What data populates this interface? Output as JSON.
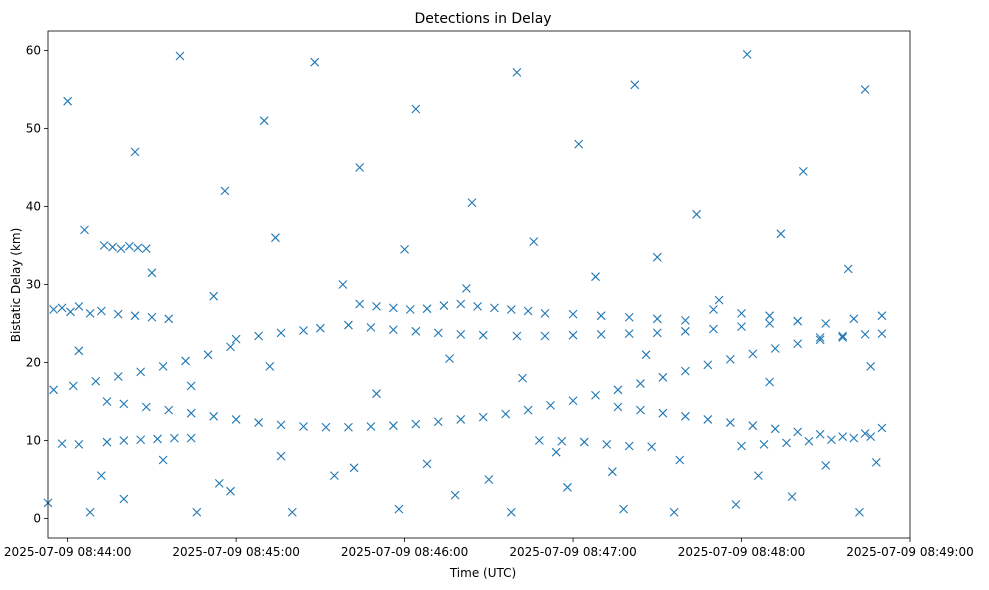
{
  "chart_data": {
    "type": "scatter",
    "title": "Detections in Delay",
    "xlabel": "Time (UTC)",
    "ylabel": "Bistatic Delay (km)",
    "marker": "x",
    "color": "#1f77b4",
    "grid": false,
    "legend": null,
    "x_axis": {
      "type": "time",
      "range": [
        "2025-07-09 08:43:53",
        "2025-07-09 08:49:00"
      ],
      "ticks": [
        {
          "value": "2025-07-09 08:44:00",
          "label": "2025-07-09 08:44:00"
        },
        {
          "value": "2025-07-09 08:45:00",
          "label": "2025-07-09 08:45:00"
        },
        {
          "value": "2025-07-09 08:46:00",
          "label": "2025-07-09 08:46:00"
        },
        {
          "value": "2025-07-09 08:47:00",
          "label": "2025-07-09 08:47:00"
        },
        {
          "value": "2025-07-09 08:48:00",
          "label": "2025-07-09 08:48:00"
        },
        {
          "value": "2025-07-09 08:49:00",
          "label": "2025-07-09 08:49:00"
        }
      ]
    },
    "y_axis": {
      "range": [
        -2.5,
        62.5
      ],
      "ticks": [
        {
          "value": 0,
          "label": "0"
        },
        {
          "value": 10,
          "label": "10"
        },
        {
          "value": 20,
          "label": "20"
        },
        {
          "value": 30,
          "label": "30"
        },
        {
          "value": 40,
          "label": "40"
        },
        {
          "value": 50,
          "label": "50"
        },
        {
          "value": 60,
          "label": "60"
        }
      ]
    },
    "series": [
      {
        "points": [
          [
            "2025-07-09 08:43:55",
            16.5
          ],
          [
            "2025-07-09 08:44:02",
            17.0
          ],
          [
            "2025-07-09 08:44:10",
            17.6
          ],
          [
            "2025-07-09 08:44:18",
            18.2
          ],
          [
            "2025-07-09 08:44:26",
            18.8
          ],
          [
            "2025-07-09 08:44:34",
            19.5
          ],
          [
            "2025-07-09 08:44:42",
            20.2
          ],
          [
            "2025-07-09 08:44:50",
            21.0
          ],
          [
            "2025-07-09 08:44:58",
            22.0
          ],
          [
            "2025-07-09 08:45:00",
            23.0
          ],
          [
            "2025-07-09 08:45:08",
            23.4
          ],
          [
            "2025-07-09 08:45:16",
            23.8
          ],
          [
            "2025-07-09 08:45:24",
            24.1
          ],
          [
            "2025-07-09 08:45:30",
            24.4
          ],
          [
            "2025-07-09 08:45:40",
            24.8
          ],
          [
            "2025-07-09 08:45:48",
            24.5
          ],
          [
            "2025-07-09 08:45:56",
            24.2
          ],
          [
            "2025-07-09 08:46:04",
            24.0
          ],
          [
            "2025-07-09 08:46:12",
            23.8
          ],
          [
            "2025-07-09 08:46:20",
            23.6
          ],
          [
            "2025-07-09 08:46:28",
            23.5
          ],
          [
            "2025-07-09 08:46:40",
            23.4
          ],
          [
            "2025-07-09 08:46:50",
            23.4
          ],
          [
            "2025-07-09 08:47:00",
            23.5
          ],
          [
            "2025-07-09 08:47:10",
            23.6
          ],
          [
            "2025-07-09 08:47:20",
            23.7
          ],
          [
            "2025-07-09 08:47:30",
            23.8
          ],
          [
            "2025-07-09 08:47:40",
            24.0
          ],
          [
            "2025-07-09 08:47:50",
            24.3
          ],
          [
            "2025-07-09 08:48:00",
            24.6
          ],
          [
            "2025-07-09 08:48:10",
            25.0
          ],
          [
            "2025-07-09 08:48:20",
            25.3
          ],
          [
            "2025-07-09 08:48:28",
            23.2
          ],
          [
            "2025-07-09 08:48:36",
            23.4
          ],
          [
            "2025-07-09 08:48:44",
            23.6
          ],
          [
            "2025-07-09 08:48:50",
            23.7
          ],
          [
            "2025-07-09 08:43:55",
            26.8
          ],
          [
            "2025-07-09 08:43:58",
            27.0
          ],
          [
            "2025-07-09 08:44:01",
            26.5
          ],
          [
            "2025-07-09 08:44:04",
            27.2
          ],
          [
            "2025-07-09 08:44:08",
            26.3
          ],
          [
            "2025-07-09 08:44:12",
            26.6
          ],
          [
            "2025-07-09 08:44:18",
            26.2
          ],
          [
            "2025-07-09 08:44:24",
            26.0
          ],
          [
            "2025-07-09 08:44:30",
            25.8
          ],
          [
            "2025-07-09 08:44:36",
            25.6
          ],
          [
            "2025-07-09 08:45:44",
            27.5
          ],
          [
            "2025-07-09 08:45:50",
            27.2
          ],
          [
            "2025-07-09 08:45:56",
            27.0
          ],
          [
            "2025-07-09 08:46:02",
            26.8
          ],
          [
            "2025-07-09 08:46:08",
            26.9
          ],
          [
            "2025-07-09 08:46:14",
            27.3
          ],
          [
            "2025-07-09 08:46:20",
            27.5
          ],
          [
            "2025-07-09 08:46:26",
            27.2
          ],
          [
            "2025-07-09 08:46:32",
            27.0
          ],
          [
            "2025-07-09 08:46:38",
            26.8
          ],
          [
            "2025-07-09 08:46:44",
            26.6
          ],
          [
            "2025-07-09 08:46:50",
            26.3
          ],
          [
            "2025-07-09 08:47:00",
            26.2
          ],
          [
            "2025-07-09 08:47:10",
            26.0
          ],
          [
            "2025-07-09 08:47:20",
            25.8
          ],
          [
            "2025-07-09 08:47:30",
            25.6
          ],
          [
            "2025-07-09 08:47:40",
            25.4
          ],
          [
            "2025-07-09 08:47:50",
            26.8
          ],
          [
            "2025-07-09 08:48:00",
            26.3
          ],
          [
            "2025-07-09 08:48:10",
            26.0
          ],
          [
            "2025-07-09 08:48:20",
            25.3
          ],
          [
            "2025-07-09 08:48:30",
            25.0
          ],
          [
            "2025-07-09 08:48:40",
            25.6
          ],
          [
            "2025-07-09 08:48:50",
            26.0
          ],
          [
            "2025-07-09 08:44:14",
            15.0
          ],
          [
            "2025-07-09 08:44:20",
            14.7
          ],
          [
            "2025-07-09 08:44:28",
            14.3
          ],
          [
            "2025-07-09 08:44:36",
            13.9
          ],
          [
            "2025-07-09 08:44:44",
            13.5
          ],
          [
            "2025-07-09 08:44:52",
            13.1
          ],
          [
            "2025-07-09 08:45:00",
            12.7
          ],
          [
            "2025-07-09 08:45:08",
            12.3
          ],
          [
            "2025-07-09 08:45:16",
            12.0
          ],
          [
            "2025-07-09 08:45:24",
            11.8
          ],
          [
            "2025-07-09 08:45:32",
            11.7
          ],
          [
            "2025-07-09 08:45:40",
            11.7
          ],
          [
            "2025-07-09 08:45:48",
            11.8
          ],
          [
            "2025-07-09 08:45:56",
            11.9
          ],
          [
            "2025-07-09 08:46:04",
            12.1
          ],
          [
            "2025-07-09 08:46:12",
            12.4
          ],
          [
            "2025-07-09 08:46:20",
            12.7
          ],
          [
            "2025-07-09 08:46:28",
            13.0
          ],
          [
            "2025-07-09 08:46:36",
            13.4
          ],
          [
            "2025-07-09 08:46:44",
            13.9
          ],
          [
            "2025-07-09 08:46:52",
            14.5
          ],
          [
            "2025-07-09 08:47:00",
            15.1
          ],
          [
            "2025-07-09 08:47:08",
            15.8
          ],
          [
            "2025-07-09 08:47:16",
            16.5
          ],
          [
            "2025-07-09 08:47:24",
            17.3
          ],
          [
            "2025-07-09 08:47:32",
            18.1
          ],
          [
            "2025-07-09 08:47:40",
            18.9
          ],
          [
            "2025-07-09 08:47:48",
            19.7
          ],
          [
            "2025-07-09 08:47:56",
            20.4
          ],
          [
            "2025-07-09 08:48:04",
            21.1
          ],
          [
            "2025-07-09 08:48:12",
            21.8
          ],
          [
            "2025-07-09 08:48:20",
            22.4
          ],
          [
            "2025-07-09 08:48:28",
            22.9
          ],
          [
            "2025-07-09 08:48:36",
            23.2
          ],
          [
            "2025-07-09 08:47:16",
            14.3
          ],
          [
            "2025-07-09 08:47:24",
            13.9
          ],
          [
            "2025-07-09 08:47:32",
            13.5
          ],
          [
            "2025-07-09 08:47:40",
            13.1
          ],
          [
            "2025-07-09 08:47:48",
            12.7
          ],
          [
            "2025-07-09 08:47:56",
            12.3
          ],
          [
            "2025-07-09 08:48:04",
            11.9
          ],
          [
            "2025-07-09 08:48:12",
            11.5
          ],
          [
            "2025-07-09 08:48:20",
            11.1
          ],
          [
            "2025-07-09 08:48:28",
            10.8
          ],
          [
            "2025-07-09 08:48:36",
            10.5
          ],
          [
            "2025-07-09 08:48:44",
            10.9
          ],
          [
            "2025-07-09 08:48:50",
            11.6
          ],
          [
            "2025-07-09 08:43:58",
            9.6
          ],
          [
            "2025-07-09 08:44:04",
            9.5
          ],
          [
            "2025-07-09 08:44:14",
            9.8
          ],
          [
            "2025-07-09 08:44:20",
            10.0
          ],
          [
            "2025-07-09 08:44:26",
            10.1
          ],
          [
            "2025-07-09 08:44:32",
            10.2
          ],
          [
            "2025-07-09 08:44:38",
            10.3
          ],
          [
            "2025-07-09 08:44:44",
            10.3
          ],
          [
            "2025-07-09 08:46:48",
            10.0
          ],
          [
            "2025-07-09 08:46:56",
            9.9
          ],
          [
            "2025-07-09 08:47:04",
            9.8
          ],
          [
            "2025-07-09 08:47:12",
            9.5
          ],
          [
            "2025-07-09 08:47:20",
            9.3
          ],
          [
            "2025-07-09 08:47:28",
            9.2
          ],
          [
            "2025-07-09 08:48:00",
            9.3
          ],
          [
            "2025-07-09 08:48:08",
            9.5
          ],
          [
            "2025-07-09 08:48:16",
            9.7
          ],
          [
            "2025-07-09 08:48:24",
            9.9
          ],
          [
            "2025-07-09 08:48:32",
            10.1
          ],
          [
            "2025-07-09 08:48:40",
            10.3
          ],
          [
            "2025-07-09 08:48:46",
            10.5
          ],
          [
            "2025-07-09 08:44:13",
            35.0
          ],
          [
            "2025-07-09 08:44:16",
            34.8
          ],
          [
            "2025-07-09 08:44:19",
            34.6
          ],
          [
            "2025-07-09 08:44:22",
            34.9
          ],
          [
            "2025-07-09 08:44:25",
            34.7
          ],
          [
            "2025-07-09 08:44:28",
            34.6
          ],
          [
            "2025-07-09 08:43:53",
            2.0
          ],
          [
            "2025-07-09 08:44:08",
            0.8
          ],
          [
            "2025-07-09 08:44:20",
            2.5
          ],
          [
            "2025-07-09 08:44:46",
            0.8
          ],
          [
            "2025-07-09 08:44:58",
            3.5
          ],
          [
            "2025-07-09 08:45:20",
            0.8
          ],
          [
            "2025-07-09 08:45:35",
            5.5
          ],
          [
            "2025-07-09 08:45:58",
            1.2
          ],
          [
            "2025-07-09 08:46:18",
            3.0
          ],
          [
            "2025-07-09 08:46:38",
            0.8
          ],
          [
            "2025-07-09 08:46:58",
            4.0
          ],
          [
            "2025-07-09 08:47:18",
            1.2
          ],
          [
            "2025-07-09 08:47:36",
            0.8
          ],
          [
            "2025-07-09 08:47:58",
            1.8
          ],
          [
            "2025-07-09 08:48:18",
            2.8
          ],
          [
            "2025-07-09 08:48:42",
            0.8
          ],
          [
            "2025-07-09 08:44:00",
            53.5
          ],
          [
            "2025-07-09 08:44:24",
            47.0
          ],
          [
            "2025-07-09 08:44:40",
            59.3
          ],
          [
            "2025-07-09 08:44:56",
            42.0
          ],
          [
            "2025-07-09 08:45:10",
            51.0
          ],
          [
            "2025-07-09 08:45:28",
            58.5
          ],
          [
            "2025-07-09 08:45:44",
            45.0
          ],
          [
            "2025-07-09 08:46:04",
            52.5
          ],
          [
            "2025-07-09 08:46:24",
            40.5
          ],
          [
            "2025-07-09 08:46:40",
            57.2
          ],
          [
            "2025-07-09 08:47:02",
            48.0
          ],
          [
            "2025-07-09 08:47:22",
            55.6
          ],
          [
            "2025-07-09 08:47:44",
            39.0
          ],
          [
            "2025-07-09 08:48:02",
            59.5
          ],
          [
            "2025-07-09 08:48:22",
            44.5
          ],
          [
            "2025-07-09 08:48:44",
            55.0
          ],
          [
            "2025-07-09 08:44:06",
            37.0
          ],
          [
            "2025-07-09 08:44:30",
            31.5
          ],
          [
            "2025-07-09 08:44:52",
            28.5
          ],
          [
            "2025-07-09 08:45:14",
            36.0
          ],
          [
            "2025-07-09 08:45:38",
            30.0
          ],
          [
            "2025-07-09 08:46:00",
            34.5
          ],
          [
            "2025-07-09 08:46:22",
            29.5
          ],
          [
            "2025-07-09 08:46:46",
            35.5
          ],
          [
            "2025-07-09 08:47:08",
            31.0
          ],
          [
            "2025-07-09 08:47:30",
            33.5
          ],
          [
            "2025-07-09 08:47:52",
            28.0
          ],
          [
            "2025-07-09 08:48:14",
            36.5
          ],
          [
            "2025-07-09 08:48:38",
            32.0
          ],
          [
            "2025-07-09 08:44:12",
            5.5
          ],
          [
            "2025-07-09 08:44:34",
            7.5
          ],
          [
            "2025-07-09 08:44:54",
            4.5
          ],
          [
            "2025-07-09 08:45:16",
            8.0
          ],
          [
            "2025-07-09 08:45:42",
            6.5
          ],
          [
            "2025-07-09 08:46:08",
            7.0
          ],
          [
            "2025-07-09 08:46:30",
            5.0
          ],
          [
            "2025-07-09 08:46:54",
            8.5
          ],
          [
            "2025-07-09 08:47:14",
            6.0
          ],
          [
            "2025-07-09 08:47:38",
            7.5
          ],
          [
            "2025-07-09 08:48:06",
            5.5
          ],
          [
            "2025-07-09 08:48:30",
            6.8
          ],
          [
            "2025-07-09 08:48:48",
            7.2
          ],
          [
            "2025-07-09 08:44:04",
            21.5
          ],
          [
            "2025-07-09 08:44:44",
            17.0
          ],
          [
            "2025-07-09 08:45:12",
            19.5
          ],
          [
            "2025-07-09 08:45:50",
            16.0
          ],
          [
            "2025-07-09 08:46:16",
            20.5
          ],
          [
            "2025-07-09 08:46:42",
            18.0
          ],
          [
            "2025-07-09 08:47:26",
            21.0
          ],
          [
            "2025-07-09 08:48:10",
            17.5
          ],
          [
            "2025-07-09 08:48:46",
            19.5
          ]
        ]
      }
    ]
  }
}
